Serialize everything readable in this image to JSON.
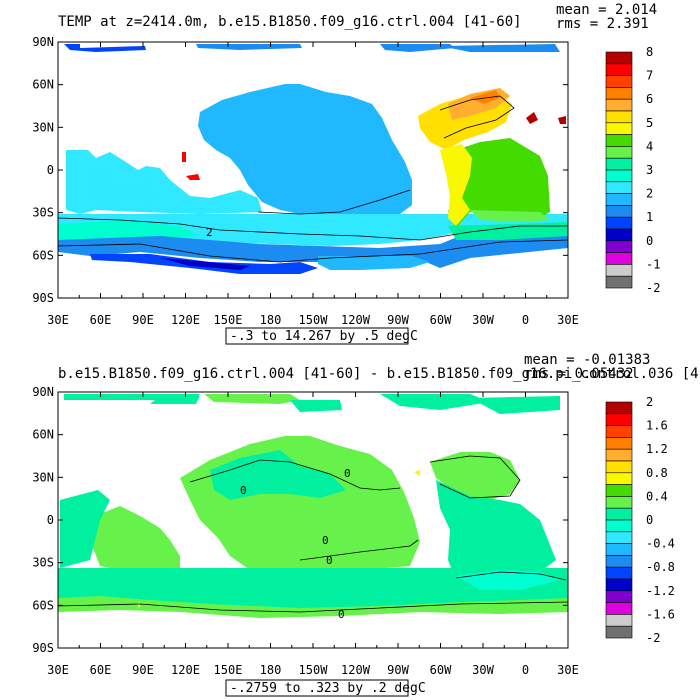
{
  "panels": [
    {
      "title": "TEMP at z=2414.0m, b.e15.B1850.f09_g16.ctrl.004 [41-60]",
      "stat_mean": "mean = 2.014",
      "stat_rms": "rms = 2.391",
      "range_note": "-.3 to 14.267 by .5 degC",
      "lat_labels": [
        "90N",
        "60N",
        "30N",
        "0",
        "30S",
        "60S",
        "90S"
      ],
      "lon_labels": [
        "30E",
        "60E",
        "90E",
        "120E",
        "150E",
        "180",
        "150W",
        "120W",
        "90W",
        "60W",
        "30W",
        "0",
        "30E"
      ],
      "colorbar": {
        "labels": [
          "8",
          "7",
          "6",
          "5",
          "4",
          "3",
          "2",
          "1",
          "0",
          "-1",
          "-2"
        ],
        "colors": [
          "#b40000",
          "#ff0000",
          "#ff4000",
          "#ff8000",
          "#ffae30",
          "#ffe000",
          "#f8f800",
          "#44dc00",
          "#66f24a",
          "#00f0a0",
          "#00ffd0",
          "#30e8ff",
          "#20b8ff",
          "#1c8cf0",
          "#0044ff",
          "#0000c8",
          "#8000d0",
          "#e000e0",
          "#cccccc",
          "#707070"
        ]
      },
      "contour_labels": [
        "2"
      ]
    },
    {
      "title": "b.e15.B1850.f09_g16.ctrl.004 [41-60] - b.e15.B1850.f09_g16.pi_control.036 [41",
      "stat_mean": "mean = -0.01383",
      "stat_rms": "rms = 0.05432",
      "range_note": "-.2759 to .323 by .2 degC",
      "lat_labels": [
        "90N",
        "60N",
        "30N",
        "0",
        "30S",
        "60S",
        "90S"
      ],
      "lon_labels": [
        "30E",
        "60E",
        "90E",
        "120E",
        "150E",
        "180",
        "150W",
        "120W",
        "90W",
        "60W",
        "30W",
        "0",
        "30E"
      ],
      "colorbar": {
        "labels": [
          "2",
          "1.6",
          "1.2",
          "0.8",
          "0.4",
          "0",
          "-0.4",
          "-0.8",
          "-1.2",
          "-1.6",
          "-2"
        ],
        "colors": [
          "#b40000",
          "#ff0000",
          "#ff4000",
          "#ff8000",
          "#ffae30",
          "#ffe000",
          "#f8f800",
          "#44dc00",
          "#66f24a",
          "#00f0a0",
          "#00ffd0",
          "#30e8ff",
          "#20b8ff",
          "#1c8cf0",
          "#0044ff",
          "#0000c8",
          "#8000d0",
          "#e000e0",
          "#cccccc",
          "#707070"
        ]
      },
      "contour_labels": [
        "0",
        "0",
        "0",
        "0",
        "0"
      ]
    }
  ]
}
